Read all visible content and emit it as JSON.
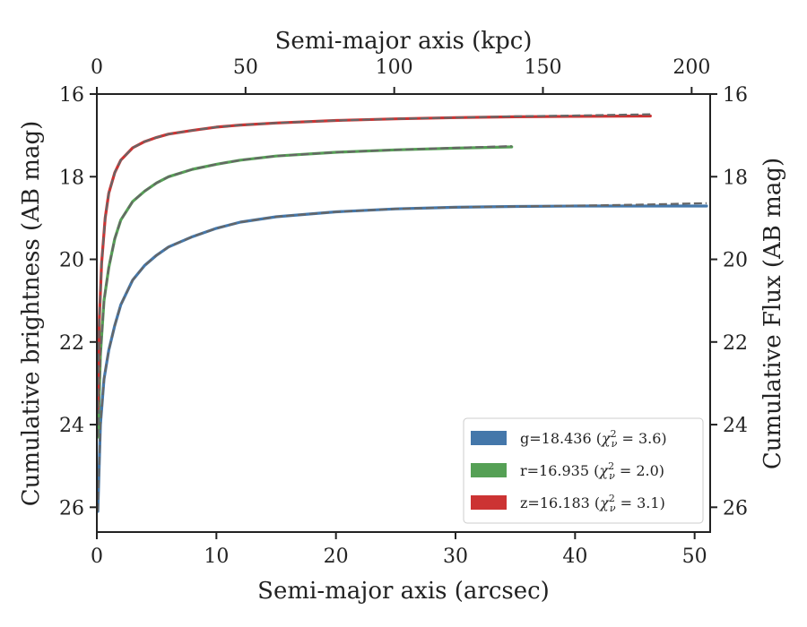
{
  "chart_data": {
    "type": "line",
    "xlabel": "Semi-major axis (arcsec)",
    "ylabel": "Cumulative brightness (AB mag)",
    "top_xlabel": "Semi-major axis (kpc)",
    "right_ylabel": "Cumulative Flux (AB mag)",
    "xlim": [
      0,
      51.3
    ],
    "ylim": [
      26.6,
      16.0
    ],
    "y_inverted": true,
    "x_ticks": [
      0,
      10,
      20,
      30,
      40,
      50
    ],
    "y_ticks": [
      16,
      18,
      20,
      22,
      24,
      26
    ],
    "top_x_ticks": [
      0,
      50,
      100,
      150,
      200
    ],
    "top_x_per_arcsec": 4.02,
    "grid": false,
    "legend_position": "bottom-right",
    "series": [
      {
        "name": "g",
        "color": "#4477aa",
        "model_color": "#666666",
        "legend": {
          "prefix": "g=18.436 (",
          "sym": "χ",
          "sup": "2",
          "sub": "ν",
          "suffix": " = 3.6)"
        },
        "x": [
          0.08,
          0.3,
          0.6,
          1,
          1.5,
          2,
          3,
          4,
          5,
          6,
          8,
          10,
          12,
          15,
          20,
          25,
          30,
          35,
          40,
          45,
          51
        ],
        "y": [
          26.1,
          24.0,
          22.9,
          22.2,
          21.6,
          21.1,
          20.5,
          20.15,
          19.9,
          19.7,
          19.45,
          19.25,
          19.1,
          18.97,
          18.85,
          18.78,
          18.74,
          18.72,
          18.71,
          18.71,
          18.71
        ],
        "model_y": [
          26.1,
          24.0,
          22.9,
          22.2,
          21.6,
          21.1,
          20.5,
          20.15,
          19.9,
          19.7,
          19.45,
          19.25,
          19.1,
          18.97,
          18.85,
          18.78,
          18.74,
          18.72,
          18.7,
          18.68,
          18.64
        ]
      },
      {
        "name": "r",
        "color": "#55a055",
        "model_color": "#666666",
        "legend": {
          "prefix": "r=16.935 (",
          "sym": "χ",
          "sup": "2",
          "sub": "ν",
          "suffix": " = 2.0)"
        },
        "x": [
          0.1,
          0.3,
          0.6,
          1,
          1.5,
          2,
          3,
          4,
          5,
          6,
          8,
          10,
          12,
          15,
          20,
          25,
          30,
          34.7
        ],
        "y": [
          24.3,
          22.3,
          21.0,
          20.2,
          19.5,
          19.05,
          18.6,
          18.35,
          18.15,
          18.0,
          17.82,
          17.7,
          17.6,
          17.5,
          17.41,
          17.35,
          17.31,
          17.28
        ],
        "model_y": [
          24.3,
          22.3,
          21.0,
          20.2,
          19.5,
          19.05,
          18.6,
          18.35,
          18.15,
          18.0,
          17.82,
          17.7,
          17.6,
          17.5,
          17.41,
          17.35,
          17.3,
          17.26
        ]
      },
      {
        "name": "z",
        "color": "#cc3333",
        "model_color": "#666666",
        "legend": {
          "prefix": "z=16.183 (",
          "sym": "χ",
          "sup": "2",
          "sub": "ν",
          "suffix": " = 3.1)"
        },
        "x": [
          0.08,
          0.2,
          0.4,
          0.7,
          1,
          1.5,
          2,
          3,
          4,
          5,
          6,
          8,
          10,
          12,
          15,
          20,
          25,
          30,
          35,
          40,
          46.3
        ],
        "y": [
          23.6,
          21.5,
          20.1,
          19.0,
          18.4,
          17.9,
          17.6,
          17.3,
          17.15,
          17.05,
          16.97,
          16.88,
          16.8,
          16.75,
          16.7,
          16.64,
          16.6,
          16.57,
          16.55,
          16.54,
          16.53
        ],
        "model_y": [
          23.6,
          21.5,
          20.1,
          19.0,
          18.4,
          17.9,
          17.6,
          17.3,
          17.15,
          17.05,
          16.97,
          16.88,
          16.8,
          16.75,
          16.7,
          16.64,
          16.6,
          16.57,
          16.54,
          16.52,
          16.49
        ]
      }
    ]
  }
}
